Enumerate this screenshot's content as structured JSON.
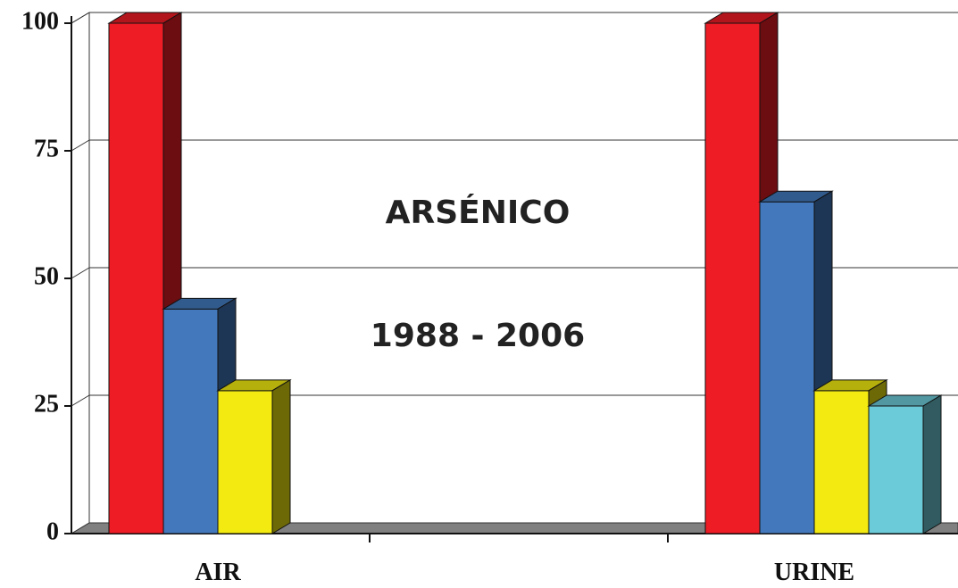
{
  "chart_data": {
    "type": "bar3d",
    "annotations": [
      "ARSÉNICO",
      "1988 - 2006"
    ],
    "categories": [
      "AIR",
      null,
      "URINE"
    ],
    "series": [
      {
        "color": "#ee1c25",
        "values": [
          100,
          null,
          100
        ]
      },
      {
        "color": "#4379bc",
        "values": [
          44,
          null,
          65
        ]
      },
      {
        "color": "#f2ea10",
        "values": [
          28,
          null,
          28
        ]
      },
      {
        "color": "#6ccbd8",
        "values": [
          null,
          null,
          25
        ]
      }
    ],
    "ylim": [
      0,
      100
    ],
    "yticks": [
      0,
      25,
      50,
      75,
      100
    ],
    "grid": true
  }
}
